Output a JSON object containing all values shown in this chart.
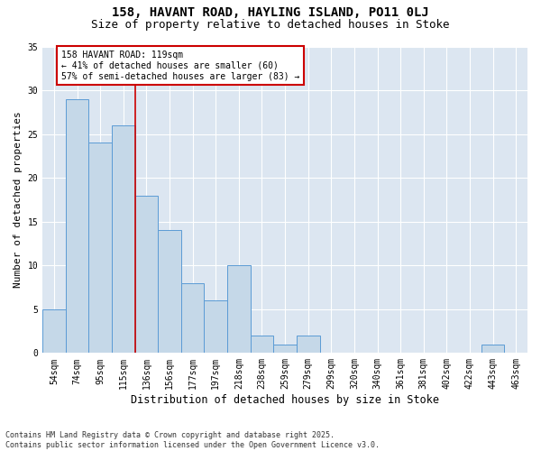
{
  "title1": "158, HAVANT ROAD, HAYLING ISLAND, PO11 0LJ",
  "title2": "Size of property relative to detached houses in Stoke",
  "xlabel": "Distribution of detached houses by size in Stoke",
  "ylabel": "Number of detached properties",
  "categories": [
    "54sqm",
    "74sqm",
    "95sqm",
    "115sqm",
    "136sqm",
    "156sqm",
    "177sqm",
    "197sqm",
    "218sqm",
    "238sqm",
    "259sqm",
    "279sqm",
    "299sqm",
    "320sqm",
    "340sqm",
    "361sqm",
    "381sqm",
    "402sqm",
    "422sqm",
    "443sqm",
    "463sqm"
  ],
  "values": [
    5,
    29,
    24,
    26,
    18,
    14,
    8,
    6,
    10,
    2,
    1,
    2,
    0,
    0,
    0,
    0,
    0,
    0,
    0,
    1,
    0
  ],
  "bar_color": "#c5d8e8",
  "bar_edgecolor": "#5b9bd5",
  "vline_x_idx": 3,
  "vline_color": "#cc0000",
  "annotation_text": "158 HAVANT ROAD: 119sqm\n← 41% of detached houses are smaller (60)\n57% of semi-detached houses are larger (83) →",
  "annotation_box_edgecolor": "#cc0000",
  "ylim": [
    0,
    35
  ],
  "yticks": [
    0,
    5,
    10,
    15,
    20,
    25,
    30,
    35
  ],
  "bg_color": "#dce6f1",
  "footnote": "Contains HM Land Registry data © Crown copyright and database right 2025.\nContains public sector information licensed under the Open Government Licence v3.0.",
  "title_fontsize": 10,
  "subtitle_fontsize": 9,
  "xlabel_fontsize": 8.5,
  "ylabel_fontsize": 8,
  "tick_fontsize": 7,
  "footnote_fontsize": 6
}
